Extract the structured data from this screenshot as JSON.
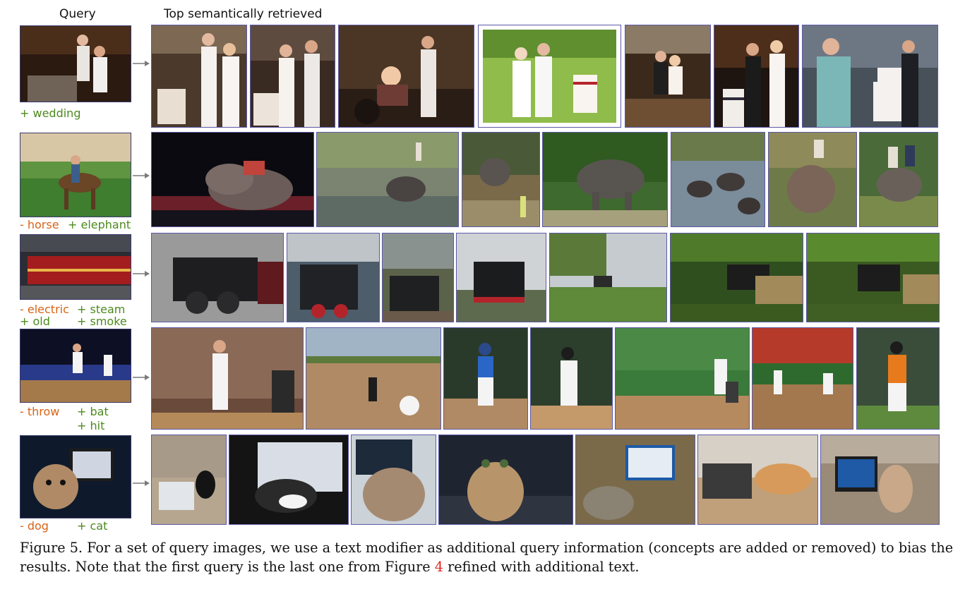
{
  "header": {
    "query_label": "Query",
    "retrieved_label": "Top semantically retrieved"
  },
  "rows": [
    {
      "query_image": "couple cutting wedding cake",
      "modifiers": [
        {
          "text": "+ wedding",
          "type": "add"
        }
      ],
      "results": [
        "bride and groom cutting tiered cake",
        "couple cutting wedding cake indoors",
        "couple cutting cake in dim barn",
        "couple cutting cake outdoors on lawn",
        "couple behind dessert table",
        "couple cutting striped cake",
        "man in teal jacket cutting cake"
      ]
    },
    {
      "query_image": "man riding horse in courtyard",
      "modifiers": [
        {
          "text": "- horse",
          "type": "remove"
        },
        {
          "text": "+ elephant",
          "type": "add"
        }
      ],
      "results": [
        "circus elephants with performers",
        "elephant in muddy river",
        "elephant near fence with child",
        "person riding elephant in water",
        "herd of elephants in river",
        "elephant walking in grass",
        "people riding elephant in water"
      ]
    },
    {
      "query_image": "red electric locomotive in station",
      "modifiers": [
        {
          "text": "- electric",
          "type": "remove"
        },
        {
          "text": "+ steam",
          "type": "add"
        },
        {
          "text": "+ old",
          "type": "add"
        },
        {
          "text": "+ smoke",
          "type": "add"
        }
      ],
      "results": [
        "black steam locomotive with steam",
        "steam train with red wheels",
        "steam locomotive front view",
        "steam engine puffing smoke",
        "distant train in green field",
        "steam train in forest",
        "steam train beside shed"
      ]
    },
    {
      "query_image": "baseball pitcher throwing",
      "modifiers": [
        {
          "text": "- throw",
          "type": "remove"
        },
        {
          "text": "+ bat",
          "type": "add"
        },
        {
          "text": "+ hit",
          "type": "add"
        }
      ],
      "results": [
        "batter swinging behind fence",
        "batter on dirt infield",
        "batter in blue jersey",
        "batter swinging at plate",
        "batter and catcher on field",
        "batter in stadium",
        "batter in orange and black"
      ]
    },
    {
      "query_image": "small dog in front of laptop",
      "modifiers": [
        {
          "text": "- dog",
          "type": "remove"
        },
        {
          "text": "+ cat",
          "type": "add"
        }
      ],
      "results": [
        "black cat beside laptop",
        "cat lying on laptop",
        "fluffy cat by computer",
        "tabby cat on keyboard",
        "cat sleeping by laptop",
        "orange cat on laptop",
        "cat sitting by laptop"
      ]
    }
  ],
  "caption": {
    "line1": "Figure 5.  For a set of query images, we use a text modifier as additional query information (concepts are added or removed) to bias the",
    "line2_before": "results. Note that the first query is the last one from Figure ",
    "line2_ref": "4",
    "line2_after": " refined with additional text."
  }
}
